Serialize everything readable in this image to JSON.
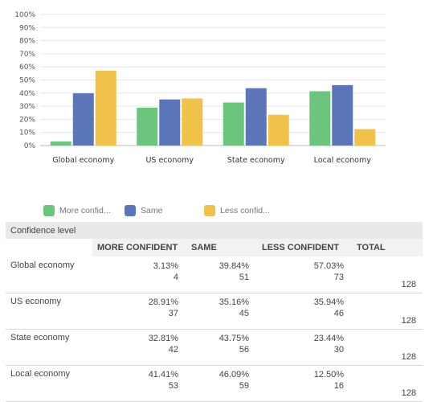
{
  "colors": {
    "more": "#6cc57c",
    "same": "#5b76b8",
    "less": "#f1c249",
    "grid": "#e6e6e6",
    "axis": "#bdbdbd"
  },
  "chart_data": {
    "type": "bar",
    "categories": [
      "Global economy",
      "US economy",
      "State economy",
      "Local economy"
    ],
    "series": [
      {
        "name": "More confid...",
        "values": [
          3.13,
          28.91,
          32.81,
          41.41
        ]
      },
      {
        "name": "Same",
        "values": [
          39.84,
          35.16,
          43.75,
          46.09
        ]
      },
      {
        "name": "Less confid...",
        "values": [
          57.03,
          35.94,
          23.44,
          12.5
        ]
      }
    ],
    "ylim": [
      0,
      100
    ],
    "yticks": [
      "0%",
      "10%",
      "20%",
      "30%",
      "40%",
      "50%",
      "60%",
      "70%",
      "80%",
      "90%",
      "100%"
    ],
    "grid": true,
    "legend": "bottom"
  },
  "table": {
    "caption": "Confidence level",
    "headers": [
      "MORE CONFIDENT",
      "SAME",
      "LESS CONFIDENT",
      "TOTAL"
    ],
    "rows": [
      {
        "label": "Global economy",
        "cells": [
          [
            "3.13%",
            "4"
          ],
          [
            "39.84%",
            "51"
          ],
          [
            "57.03%",
            "73"
          ]
        ],
        "total": "128"
      },
      {
        "label": "US economy",
        "cells": [
          [
            "28.91%",
            "37"
          ],
          [
            "35.16%",
            "45"
          ],
          [
            "35.94%",
            "46"
          ]
        ],
        "total": "128"
      },
      {
        "label": "State economy",
        "cells": [
          [
            "32.81%",
            "42"
          ],
          [
            "43.75%",
            "56"
          ],
          [
            "23.44%",
            "30"
          ]
        ],
        "total": "128"
      },
      {
        "label": "Local economy",
        "cells": [
          [
            "41.41%",
            "53"
          ],
          [
            "46.09%",
            "59"
          ],
          [
            "12.50%",
            "16"
          ]
        ],
        "total": "128"
      }
    ]
  }
}
